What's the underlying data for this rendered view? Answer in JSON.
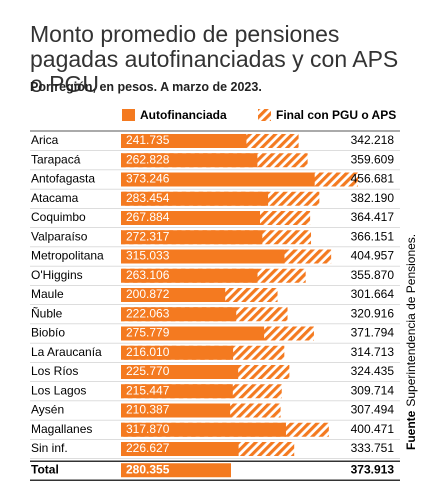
{
  "chart_data": {
    "type": "bar",
    "title": "Monto promedio de pensiones pagadas autofinanciadas y con APS o PGU",
    "subtitle": "Por región, en pesos. A marzo de 2023.",
    "categories": [
      "Arica",
      "Tarapacá",
      "Antofagasta",
      "Atacama",
      "Coquimbo",
      "Valparaíso",
      "Metropolitana",
      "O'Higgins",
      "Maule",
      "Ñuble",
      "Biobío",
      "La Araucanía",
      "Los Ríos",
      "Los Lagos",
      "Aysén",
      "Magallanes",
      "Sin inf."
    ],
    "series": [
      {
        "name": "Autofinanciada",
        "color": "#f47a20",
        "values": [
          241735,
          262828,
          373246,
          283454,
          267884,
          272317,
          315033,
          263106,
          200872,
          222063,
          275779,
          216010,
          225770,
          215447,
          210387,
          317870,
          226627
        ],
        "value_labels": [
          "241.735",
          "262.828",
          "373.246",
          "283.454",
          "267.884",
          "272.317",
          "315.033",
          "263.106",
          "200.872",
          "222.063",
          "275.779",
          "216.010",
          "225.770",
          "215.447",
          "210.387",
          "317.870",
          "226.627"
        ]
      },
      {
        "name": "Final con PGU o APS",
        "color": "#f47a20",
        "pattern": "hatch",
        "values": [
          342218,
          359609,
          456681,
          382190,
          364417,
          366151,
          404957,
          355870,
          301664,
          320916,
          371794,
          314713,
          324435,
          309714,
          307494,
          400471,
          333751
        ],
        "value_labels": [
          "342.218",
          "359.609",
          "456.681",
          "382.190",
          "364.417",
          "366.151",
          "404.957",
          "355.870",
          "301.664",
          "320.916",
          "371.794",
          "314.713",
          "324.435",
          "309.714",
          "307.494",
          "400.471",
          "333.751"
        ]
      }
    ],
    "total": {
      "label": "Total",
      "values": [
        280355,
        373913
      ],
      "value_labels": [
        "280.355",
        "373.913"
      ]
    },
    "source": {
      "label": "Fuente",
      "text": "Superintendencia de Pensiones."
    }
  }
}
